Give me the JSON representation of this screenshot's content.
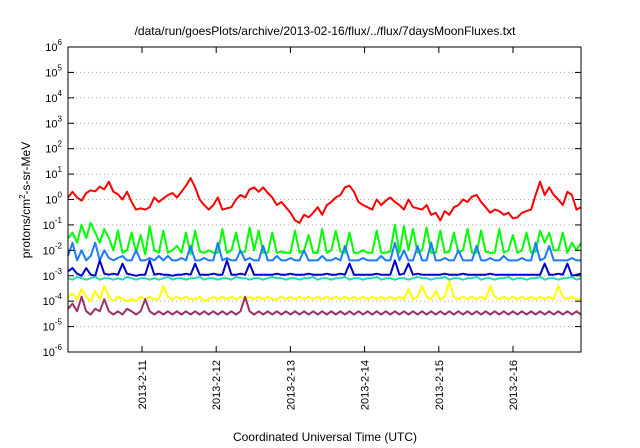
{
  "chart_data": {
    "type": "line",
    "title": "/data/run/goesPlots/archive/2013-02-16/flux/../flux/7daysMoonFluxes.txt",
    "ylabel_parts": [
      "protons/cm",
      "2",
      "-s-sr-MeV"
    ],
    "xlabel": "Coordinated Universal Time (UTC)",
    "y_scale": "log",
    "ylim": [
      1e-06,
      1000000.0
    ],
    "xlim": [
      "2013-02-10 03:00",
      "2013-02-16 23:00"
    ],
    "x_ticks": [
      "2013-2-11",
      "2013-2-12",
      "2013-2-13",
      "2013-2-14",
      "2013-2-15",
      "2013-2-16"
    ],
    "y_ticks": [
      {
        "base": "10",
        "exp": "-6"
      },
      {
        "base": "10",
        "exp": "-5"
      },
      {
        "base": "10",
        "exp": "-4"
      },
      {
        "base": "10",
        "exp": "-3"
      },
      {
        "base": "10",
        "exp": "-2"
      },
      {
        "base": "10",
        "exp": "-1"
      },
      {
        "base": "10",
        "exp": "0"
      },
      {
        "base": "10",
        "exp": "1"
      },
      {
        "base": "10",
        "exp": "2"
      },
      {
        "base": "10",
        "exp": "3"
      },
      {
        "base": "10",
        "exp": "4"
      },
      {
        "base": "10",
        "exp": "5"
      },
      {
        "base": "10",
        "exp": "6"
      }
    ],
    "grid": "horizontal dotted",
    "series": [
      {
        "color": "#ff0000",
        "width": 2,
        "values": [
          1.2,
          2.0,
          1.2,
          0.9,
          1.8,
          2.3,
          2.1,
          3.2,
          2.5,
          5.0,
          2.0,
          1.6,
          1.0,
          2.0,
          0.8,
          0.4,
          0.45,
          0.4,
          0.5,
          1.2,
          0.8,
          1.1,
          1.5,
          1.8,
          1.2,
          2.0,
          3.5,
          7.0,
          3.0,
          1.0,
          0.6,
          0.4,
          0.6,
          1.2,
          0.4,
          0.45,
          0.5,
          1.0,
          1.5,
          1.2,
          2.5,
          3.0,
          2.0,
          3.0,
          1.8,
          1.2,
          0.6,
          0.8,
          0.5,
          0.3,
          0.15,
          0.12,
          0.25,
          0.2,
          0.3,
          0.5,
          0.25,
          0.6,
          0.8,
          1.2,
          1.5,
          3.0,
          3.5,
          2.0,
          0.8,
          0.6,
          0.5,
          0.4,
          1.0,
          0.6,
          0.9,
          1.2,
          0.8,
          0.6,
          0.4,
          1.0,
          0.5,
          0.45,
          0.4,
          0.6,
          0.25,
          0.3,
          0.15,
          0.35,
          0.25,
          0.5,
          0.6,
          1.0,
          0.8,
          1.3,
          1.5,
          0.8,
          0.5,
          0.3,
          0.4,
          0.35,
          0.25,
          0.3,
          0.18,
          0.2,
          0.3,
          0.35,
          0.4,
          1.5,
          5.0,
          1.5,
          3.0,
          1.5,
          1.0,
          0.6,
          2.0,
          1.5,
          0.4,
          0.5
        ]
      },
      {
        "color": "#00ff00",
        "width": 2,
        "values": [
          0.03,
          0.05,
          0.02,
          0.1,
          0.03,
          0.12,
          0.05,
          0.02,
          0.07,
          0.03,
          0.01,
          0.06,
          0.008,
          0.01,
          0.05,
          0.008,
          0.04,
          0.007,
          0.09,
          0.01,
          0.008,
          0.06,
          0.008,
          0.01,
          0.015,
          0.008,
          0.05,
          0.007,
          0.06,
          0.009,
          0.008,
          0.01,
          0.008,
          0.008,
          0.07,
          0.008,
          0.01,
          0.05,
          0.008,
          0.009,
          0.08,
          0.01,
          0.06,
          0.008,
          0.008,
          0.05,
          0.008,
          0.009,
          0.008,
          0.008,
          0.06,
          0.008,
          0.01,
          0.04,
          0.008,
          0.008,
          0.07,
          0.008,
          0.01,
          0.06,
          0.009,
          0.008,
          0.05,
          0.008,
          0.008,
          0.01,
          0.008,
          0.008,
          0.06,
          0.008,
          0.008,
          0.009,
          0.1,
          0.008,
          0.09,
          0.01,
          0.07,
          0.008,
          0.01,
          0.08,
          0.008,
          0.008,
          0.06,
          0.008,
          0.009,
          0.05,
          0.008,
          0.01,
          0.07,
          0.008,
          0.008,
          0.06,
          0.009,
          0.008,
          0.008,
          0.07,
          0.008,
          0.01,
          0.04,
          0.008,
          0.01,
          0.05,
          0.008,
          0.009,
          0.06,
          0.02,
          0.05,
          0.01,
          0.01,
          0.05,
          0.008,
          0.02,
          0.01,
          0.02
        ]
      },
      {
        "color": "#1e7bff",
        "width": 2,
        "values": [
          0.006,
          0.02,
          0.004,
          0.01,
          0.004,
          0.006,
          0.02,
          0.004,
          0.01,
          0.005,
          0.004,
          0.005,
          0.006,
          0.004,
          0.004,
          0.01,
          0.004,
          0.004,
          0.005,
          0.004,
          0.006,
          0.004,
          0.006,
          0.004,
          0.004,
          0.005,
          0.004,
          0.015,
          0.004,
          0.004,
          0.005,
          0.004,
          0.004,
          0.02,
          0.004,
          0.005,
          0.004,
          0.004,
          0.01,
          0.004,
          0.005,
          0.004,
          0.004,
          0.015,
          0.004,
          0.004,
          0.006,
          0.004,
          0.004,
          0.005,
          0.004,
          0.004,
          0.01,
          0.004,
          0.004,
          0.004,
          0.006,
          0.004,
          0.004,
          0.005,
          0.004,
          0.015,
          0.004,
          0.004,
          0.004,
          0.005,
          0.004,
          0.004,
          0.004,
          0.006,
          0.004,
          0.004,
          0.02,
          0.004,
          0.01,
          0.004,
          0.004,
          0.015,
          0.004,
          0.004,
          0.02,
          0.004,
          0.004,
          0.005,
          0.004,
          0.004,
          0.01,
          0.004,
          0.004,
          0.004,
          0.015,
          0.004,
          0.004,
          0.005,
          0.004,
          0.004,
          0.006,
          0.004,
          0.004,
          0.004,
          0.005,
          0.004,
          0.004,
          0.02,
          0.004,
          0.005,
          0.015,
          0.004,
          0.004,
          0.004,
          0.004,
          0.005,
          0.004,
          0.004
        ]
      },
      {
        "color": "#0000cc",
        "width": 2,
        "values": [
          0.0015,
          0.002,
          0.0012,
          0.001,
          0.002,
          0.0011,
          0.001,
          0.004,
          0.0012,
          0.0011,
          0.0012,
          0.0011,
          0.003,
          0.0012,
          0.0011,
          0.001,
          0.0011,
          0.0011,
          0.004,
          0.0011,
          0.0012,
          0.0011,
          0.0011,
          0.001,
          0.0011,
          0.0011,
          0.0012,
          0.0011,
          0.003,
          0.0011,
          0.0011,
          0.0011,
          0.0012,
          0.0011,
          0.0011,
          0.004,
          0.0011,
          0.0011,
          0.0012,
          0.0011,
          0.003,
          0.0011,
          0.0011,
          0.0011,
          0.0011,
          0.0011,
          0.0012,
          0.0011,
          0.0011,
          0.0012,
          0.0011,
          0.0011,
          0.0011,
          0.0012,
          0.0011,
          0.0011,
          0.0011,
          0.0012,
          0.0011,
          0.0011,
          0.0012,
          0.0011,
          0.003,
          0.0011,
          0.0011,
          0.0011,
          0.0011,
          0.0011,
          0.0012,
          0.0011,
          0.0011,
          0.0011,
          0.004,
          0.0011,
          0.0012,
          0.003,
          0.0011,
          0.0012,
          0.0011,
          0.0011,
          0.0011,
          0.0011,
          0.0011,
          0.0012,
          0.0011,
          0.0011,
          0.0011,
          0.0012,
          0.0011,
          0.0011,
          0.0011,
          0.0011,
          0.0011,
          0.0012,
          0.0011,
          0.0011,
          0.0011,
          0.0011,
          0.0011,
          0.0011,
          0.0011,
          0.0011,
          0.0011,
          0.0011,
          0.0011,
          0.003,
          0.0011,
          0.0011,
          0.0012,
          0.0011,
          0.003,
          0.001,
          0.0011,
          0.0012
        ]
      },
      {
        "color": "#22ddaa",
        "width": 2,
        "values": [
          0.0008,
          0.0007,
          0.0009,
          0.0008,
          0.0007,
          0.0008,
          0.0009,
          0.0007,
          0.0008,
          0.0008,
          0.0007,
          0.0008,
          0.0007,
          0.0009,
          0.0008,
          0.0007,
          0.0008,
          0.0008,
          0.0007,
          0.0008,
          0.0007,
          0.0008,
          0.0009,
          0.0007,
          0.0008,
          0.0008,
          0.0007,
          0.0008,
          0.0008,
          0.0009,
          0.0007,
          0.0008,
          0.0008,
          0.0007,
          0.0008,
          0.0008,
          0.0007,
          0.0009,
          0.0008,
          0.0008,
          0.0007,
          0.0008,
          0.0008,
          0.0007,
          0.0008,
          0.0009,
          0.0008,
          0.0008,
          0.0007,
          0.0008,
          0.0008,
          0.0007,
          0.0008,
          0.0008,
          0.0009,
          0.0007,
          0.0008,
          0.0008,
          0.0007,
          0.0008,
          0.0008,
          0.0009,
          0.0007,
          0.0008,
          0.0008,
          0.0007,
          0.0008,
          0.0008,
          0.0009,
          0.0007,
          0.0008,
          0.0008,
          0.0007,
          0.0008,
          0.0008,
          0.0007,
          0.0008,
          0.0009,
          0.0008,
          0.0008,
          0.0007,
          0.0008,
          0.0008,
          0.0009,
          0.0007,
          0.0008,
          0.0008,
          0.0007,
          0.0008,
          0.0008,
          0.0009,
          0.0007,
          0.0008,
          0.0008,
          0.0007,
          0.0008,
          0.0008,
          0.0009,
          0.0007,
          0.0008,
          0.0008,
          0.0007,
          0.0008,
          0.0008,
          0.0009,
          0.0007,
          0.0008,
          0.0008,
          0.0007,
          0.0008,
          0.0008,
          0.0009,
          0.0007,
          0.0008
        ]
      },
      {
        "color": "#ffff00",
        "width": 2,
        "values": [
          0.00015,
          0.0002,
          0.00012,
          0.0003,
          0.00015,
          0.0001,
          0.00025,
          0.00012,
          0.0004,
          0.00015,
          0.0001,
          0.00015,
          0.00012,
          0.0001,
          0.00012,
          0.0001,
          0.00015,
          0.00012,
          0.00015,
          0.00012,
          0.00012,
          0.0004,
          0.00015,
          0.00012,
          0.00015,
          0.00012,
          0.00015,
          0.00012,
          0.00012,
          0.00015,
          0.0001,
          0.00012,
          0.00015,
          0.00012,
          0.00015,
          0.00012,
          0.00015,
          0.00012,
          0.00015,
          0.00012,
          0.00015,
          0.00012,
          0.00015,
          0.00012,
          0.00015,
          0.00012,
          0.00012,
          0.00015,
          0.00012,
          0.00015,
          0.00012,
          0.00015,
          0.00012,
          0.00015,
          0.00012,
          0.00015,
          0.00012,
          0.00015,
          0.00012,
          0.00015,
          0.00012,
          0.00015,
          0.00012,
          0.00015,
          0.00012,
          0.00015,
          0.00012,
          0.00015,
          0.00012,
          0.00015,
          0.00012,
          0.00015,
          0.00012,
          0.00015,
          0.00012,
          0.0003,
          0.00012,
          0.00015,
          0.0004,
          0.00015,
          0.00012,
          0.00025,
          0.00012,
          0.00015,
          0.0006,
          0.00015,
          0.00012,
          0.00015,
          0.00012,
          0.00015,
          0.00012,
          0.00015,
          0.00012,
          0.0004,
          0.00015,
          0.00012,
          0.00015,
          0.00012,
          0.00015,
          0.00012,
          0.00015,
          0.00012,
          0.00015,
          0.00012,
          0.00015,
          0.00012,
          0.00015,
          0.00012,
          0.0004,
          0.00015,
          0.00012,
          0.00015,
          0.00012,
          0.00012
        ]
      },
      {
        "color": "#993366",
        "width": 2,
        "values": [
          5e-05,
          8e-05,
          4e-05,
          0.00015,
          4e-05,
          3e-05,
          5e-05,
          4e-05,
          0.00012,
          4e-05,
          3e-05,
          4e-05,
          3e-05,
          5e-05,
          4e-05,
          3e-05,
          4e-05,
          0.00012,
          4e-05,
          3e-05,
          4e-05,
          3e-05,
          4e-05,
          3e-05,
          4e-05,
          3e-05,
          4e-05,
          3e-05,
          4e-05,
          3e-05,
          4e-05,
          3e-05,
          4e-05,
          3e-05,
          4e-05,
          3e-05,
          4e-05,
          3e-05,
          4e-05,
          0.00015,
          4e-05,
          3e-05,
          4e-05,
          3e-05,
          4e-05,
          3e-05,
          4e-05,
          3e-05,
          4e-05,
          3e-05,
          4e-05,
          3e-05,
          4e-05,
          3e-05,
          4e-05,
          3e-05,
          4e-05,
          3e-05,
          4e-05,
          3e-05,
          4e-05,
          3e-05,
          4e-05,
          3e-05,
          4e-05,
          3e-05,
          4e-05,
          3e-05,
          4e-05,
          3e-05,
          4e-05,
          3e-05,
          4e-05,
          3e-05,
          4e-05,
          3e-05,
          4e-05,
          3e-05,
          4e-05,
          3e-05,
          4e-05,
          3e-05,
          4e-05,
          3e-05,
          4e-05,
          3e-05,
          4e-05,
          3e-05,
          4e-05,
          3e-05,
          4e-05,
          3e-05,
          4e-05,
          3e-05,
          4e-05,
          3e-05,
          4e-05,
          3e-05,
          4e-05,
          3e-05,
          4e-05,
          3e-05,
          4e-05,
          3e-05,
          4e-05,
          3e-05,
          4e-05,
          3e-05,
          4e-05,
          3e-05,
          4e-05,
          3e-05,
          4e-05,
          3e-05
        ]
      }
    ]
  }
}
